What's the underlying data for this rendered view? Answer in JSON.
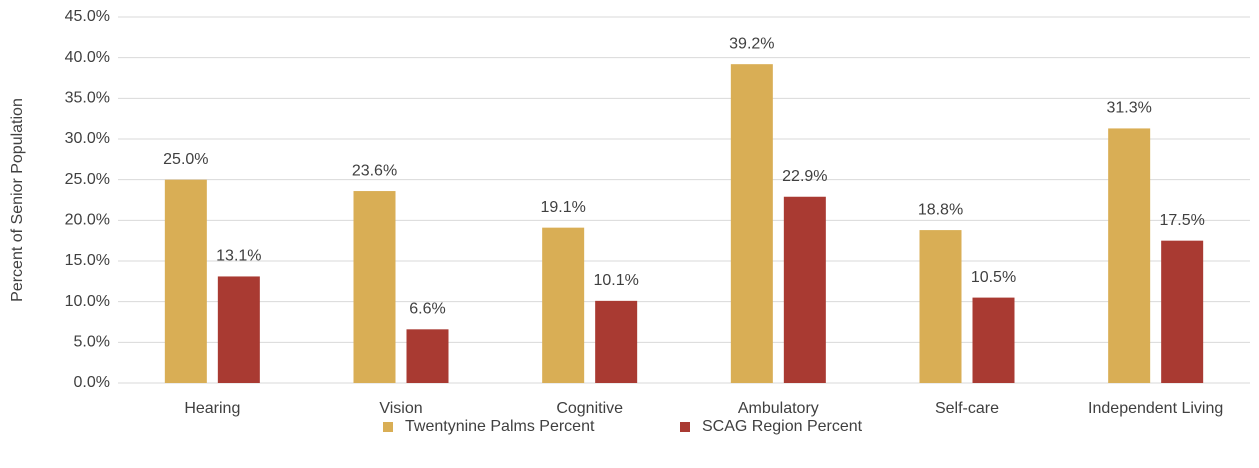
{
  "chart_data": {
    "type": "bar",
    "y_label": "Percent of Senior Population",
    "categories": [
      "Hearing",
      "Vision",
      "Cognitive",
      "Ambulatory",
      "Self-care",
      "Independent Living"
    ],
    "series": [
      {
        "name": "Twentynine Palms Percent",
        "color": "#d9ae55",
        "values": [
          25.0,
          23.6,
          19.1,
          39.2,
          18.8,
          31.3
        ],
        "value_labels": [
          "25.0%",
          "23.6%",
          "19.1%",
          "39.2%",
          "18.8%",
          "31.3%"
        ]
      },
      {
        "name": "SCAG Region Percent",
        "color": "#a93a32",
        "values": [
          13.1,
          6.6,
          10.1,
          22.9,
          10.5,
          17.5
        ],
        "value_labels": [
          "13.1%",
          "6.6%",
          "10.1%",
          "22.9%",
          "10.5%",
          "17.5%"
        ]
      }
    ],
    "ylim": [
      0,
      45
    ],
    "yticks": [
      {
        "value": 0,
        "label": "0.0%"
      },
      {
        "value": 5,
        "label": "5.0%"
      },
      {
        "value": 10,
        "label": "10.0%"
      },
      {
        "value": 15,
        "label": "15.0%"
      },
      {
        "value": 20,
        "label": "20.0%"
      },
      {
        "value": 25,
        "label": "25.0%"
      },
      {
        "value": 30,
        "label": "30.0%"
      },
      {
        "value": 35,
        "label": "35.0%"
      },
      {
        "value": 40,
        "label": "40.0%"
      },
      {
        "value": 45,
        "label": "45.0%"
      }
    ],
    "grid": true,
    "legend": "bottom"
  }
}
